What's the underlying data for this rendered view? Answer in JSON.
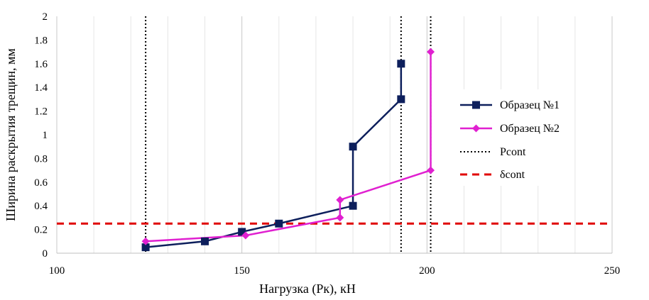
{
  "chart_data": {
    "type": "line",
    "xlabel": "Нагрузка (Рк), кН",
    "ylabel": "Ширина раскрытия трещин, мм",
    "xlim": [
      100,
      250
    ],
    "ylim": [
      0,
      2
    ],
    "x_ticks": [
      100,
      150,
      200,
      250
    ],
    "y_ticks": [
      0,
      0.2,
      0.4,
      0.6,
      0.8,
      1,
      1.2,
      1.4,
      1.6,
      1.8,
      2
    ],
    "x_tick_labels": [
      "100",
      "150",
      "200",
      "250"
    ],
    "y_tick_labels": [
      "0",
      "0.2",
      "0.4",
      "0.6",
      "0.8",
      "1",
      "1.2",
      "1.4",
      "1.6",
      "1.8",
      "2"
    ],
    "grid": "vertical major and minor gridlines",
    "legend_position": "right",
    "series": [
      {
        "name": "Образец №1",
        "color": "#0d1f5c",
        "marker": "square",
        "x": [
          124,
          140,
          150,
          160,
          180,
          180,
          193,
          193
        ],
        "y": [
          0.05,
          0.1,
          0.18,
          0.25,
          0.4,
          0.9,
          1.3,
          1.6
        ]
      },
      {
        "name": "Образец №2",
        "color": "#e020d0",
        "marker": "diamond",
        "x": [
          124,
          151,
          176.5,
          176.5,
          201,
          201
        ],
        "y": [
          0.1,
          0.15,
          0.3,
          0.45,
          0.7,
          1.7
        ]
      }
    ],
    "reference_lines": [
      {
        "name": "Pcont",
        "orientation": "vertical",
        "style": "dotted",
        "color": "#000000",
        "x": [
          124,
          193,
          201
        ]
      },
      {
        "name": "δcont",
        "orientation": "horizontal",
        "style": "dashed",
        "color": "#e00000",
        "y": 0.25
      }
    ]
  }
}
